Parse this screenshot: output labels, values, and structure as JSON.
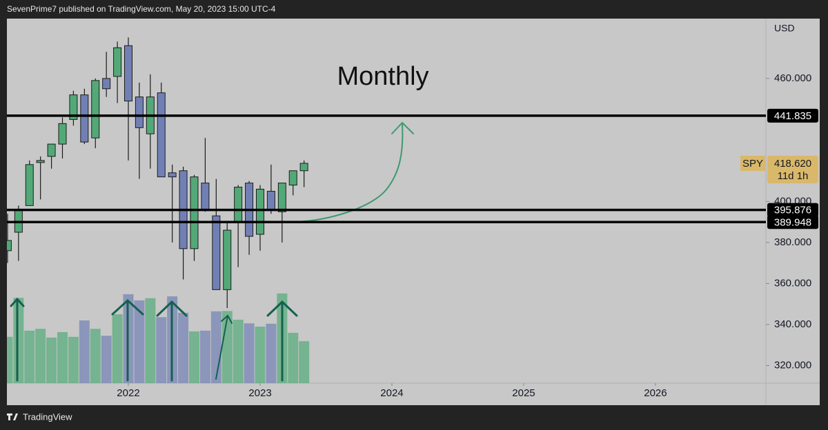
{
  "header": "SevenPrime7 published on TradingView.com, May 20, 2023 15:00 UTC-4",
  "footer": "TradingView",
  "chart_data": {
    "type": "candlestick",
    "title": "Monthly",
    "y_unit": "USD",
    "x": [
      2021.0833,
      2021.1667,
      2021.25,
      2021.3333,
      2021.4167,
      2021.5,
      2021.5833,
      2021.6667,
      2021.75,
      2021.8333,
      2021.9167,
      2022,
      2022.0833,
      2022.1667,
      2022.25,
      2022.3333,
      2022.4167,
      2022.5,
      2022.5833,
      2022.6667,
      2022.75,
      2022.8333,
      2022.9167,
      2023,
      2023.0833,
      2023.1667,
      2023.25,
      2023.3333
    ],
    "series": [
      {
        "name": "SPY",
        "up_color": "#52a977",
        "down_color": "#7180b4",
        "open": [
          376,
          385,
          398,
          419,
          422,
          428,
          440,
          452,
          431,
          460,
          461,
          476,
          451,
          433,
          453,
          414,
          415,
          377,
          409,
          393,
          357,
          390,
          409,
          384,
          405,
          395,
          408,
          415
        ],
        "high": [
          394,
          398,
          420,
          422,
          428,
          441,
          454,
          455,
          460,
          473,
          478,
          480,
          458,
          462,
          458,
          418,
          417,
          413,
          431,
          411,
          390,
          408,
          410,
          408,
          418,
          409,
          415,
          420
        ],
        "low": [
          370,
          371,
          398,
          401,
          416,
          421,
          437,
          428,
          426,
          451,
          448,
          420,
          411,
          416,
          412,
          380,
          362,
          371,
          395,
          357,
          348,
          368,
          374,
          376,
          394,
          380,
          403,
          407
        ],
        "close": [
          381,
          396,
          418,
          420,
          428,
          438,
          452,
          429,
          459,
          455,
          475,
          449,
          436,
          451,
          412,
          412,
          377,
          412,
          396,
          357,
          386,
          407,
          383,
          406,
          396,
          409,
          415,
          418.62
        ],
        "volume": [
          1270,
          2340,
          1440,
          1490,
          1250,
          1400,
          1270,
          1720,
          1490,
          1300,
          1890,
          2440,
          2270,
          2330,
          1810,
          2380,
          1930,
          1420,
          1440,
          1970,
          1980,
          1740,
          1640,
          1550,
          1630,
          2460,
          1380,
          1150
        ]
      }
    ],
    "volume_ylim": [
      0,
      10000
    ],
    "xlim": [
      2021.0785,
      2026.838
    ],
    "xticks": [
      2022,
      2023,
      2024,
      2025,
      2026
    ],
    "ylim": [
      311.4,
      489.2
    ],
    "yticks": [
      {
        "value": 320,
        "label": "320.000"
      },
      {
        "value": 340,
        "label": "340.000"
      },
      {
        "value": 360,
        "label": "360.000"
      },
      {
        "value": 380,
        "label": "380.000"
      },
      {
        "value": 400,
        "label": "400.000"
      },
      {
        "value": 460,
        "label": "460.000"
      }
    ],
    "hlines": [
      {
        "value": 441.835,
        "label": "441.835"
      },
      {
        "value": 395.876,
        "label": "395.876"
      },
      {
        "value": 389.948,
        "label": "389.948"
      }
    ],
    "last_price": {
      "name": "SPY",
      "value": 418.62,
      "label": "418.620",
      "countdown": "11d 1h"
    }
  }
}
